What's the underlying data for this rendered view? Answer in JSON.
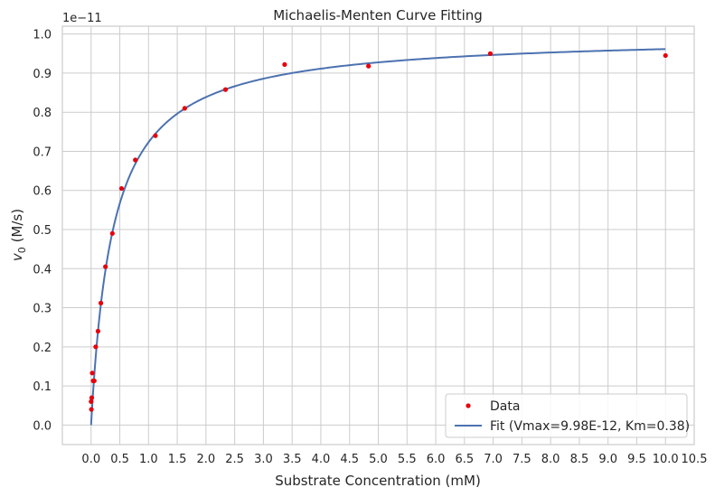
{
  "chart_data": {
    "type": "scatter",
    "title": "Michaelis-Menten Curve Fitting",
    "xlabel": "Substrate Concentration (mM)",
    "ylabel_var": "v",
    "ylabel_sub": "0",
    "ylabel_unit": " (M/s)",
    "y_offset_text": "1e−11",
    "xlim": [
      -0.5,
      10.5
    ],
    "ylim": [
      -0.05,
      1.02
    ],
    "x_ticks": [
      "0.0",
      "0.5",
      "1.0",
      "1.5",
      "2.0",
      "2.5",
      "3.0",
      "3.5",
      "4.0",
      "4.5",
      "5.0",
      "5.5",
      "6.0",
      "6.5",
      "7.0",
      "7.5",
      "8.0",
      "8.5",
      "9.0",
      "9.5",
      "10.0",
      "10.5"
    ],
    "y_ticks": [
      "0.0",
      "0.1",
      "0.2",
      "0.3",
      "0.4",
      "0.5",
      "0.6",
      "0.7",
      "0.8",
      "0.9",
      "1.0"
    ],
    "grid": true,
    "legend_position": "lower-right",
    "series": [
      {
        "name": "Data",
        "kind": "scatter",
        "color": "#e8000b",
        "x": [
          0.0,
          0.005,
          0.011,
          0.02,
          0.035,
          0.055,
          0.08,
          0.12,
          0.17,
          0.25,
          0.37,
          0.53,
          0.77,
          1.12,
          1.63,
          2.34,
          3.37,
          4.83,
          6.95,
          10.0
        ],
        "y": [
          0.06,
          0.04,
          0.07,
          0.133,
          0.113,
          0.113,
          0.2,
          0.24,
          0.312,
          0.405,
          0.49,
          0.605,
          0.678,
          0.74,
          0.81,
          0.858,
          0.922,
          0.918,
          0.95,
          0.945
        ]
      },
      {
        "name": "Fit (Vmax=9.98E-12, Km=0.38)",
        "kind": "line",
        "color": "#4c72b0",
        "vmax": 0.998,
        "km": 0.38,
        "x_range": [
          0,
          10
        ]
      }
    ]
  }
}
